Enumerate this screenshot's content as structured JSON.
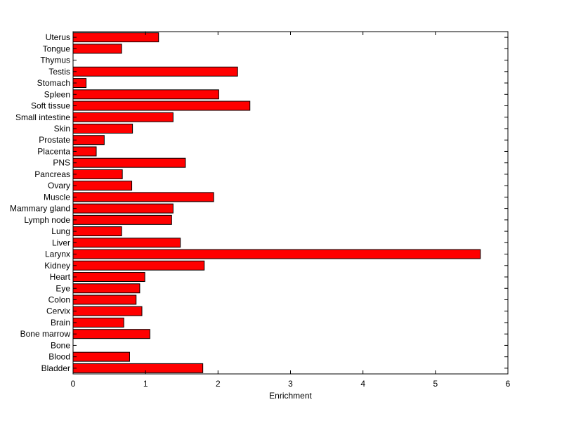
{
  "chart_data": {
    "type": "bar",
    "orientation": "horizontal",
    "title": "",
    "xlabel": "Enrichment",
    "ylabel": "",
    "xlim": [
      0,
      6
    ],
    "xticks": [
      0,
      1,
      2,
      3,
      4,
      5,
      6
    ],
    "grid": false,
    "bar_color": "#ff0000",
    "categories": [
      "Uterus",
      "Tongue",
      "Thymus",
      "Testis",
      "Stomach",
      "Spleen",
      "Soft tissue",
      "Small intestine",
      "Skin",
      "Prostate",
      "Placenta",
      "PNS",
      "Pancreas",
      "Ovary",
      "Muscle",
      "Mammary gland",
      "Lymph node",
      "Lung",
      "Liver",
      "Larynx",
      "Kidney",
      "Heart",
      "Eye",
      "Colon",
      "Cervix",
      "Brain",
      "Bone marrow",
      "Bone",
      "Blood",
      "Bladder"
    ],
    "values": [
      1.18,
      0.67,
      0.0,
      2.27,
      0.18,
      2.01,
      2.44,
      1.38,
      0.82,
      0.43,
      0.32,
      1.55,
      0.68,
      0.81,
      1.94,
      1.38,
      1.36,
      0.67,
      1.48,
      5.62,
      1.81,
      0.99,
      0.92,
      0.87,
      0.95,
      0.7,
      1.06,
      0.0,
      0.78,
      1.79
    ]
  }
}
